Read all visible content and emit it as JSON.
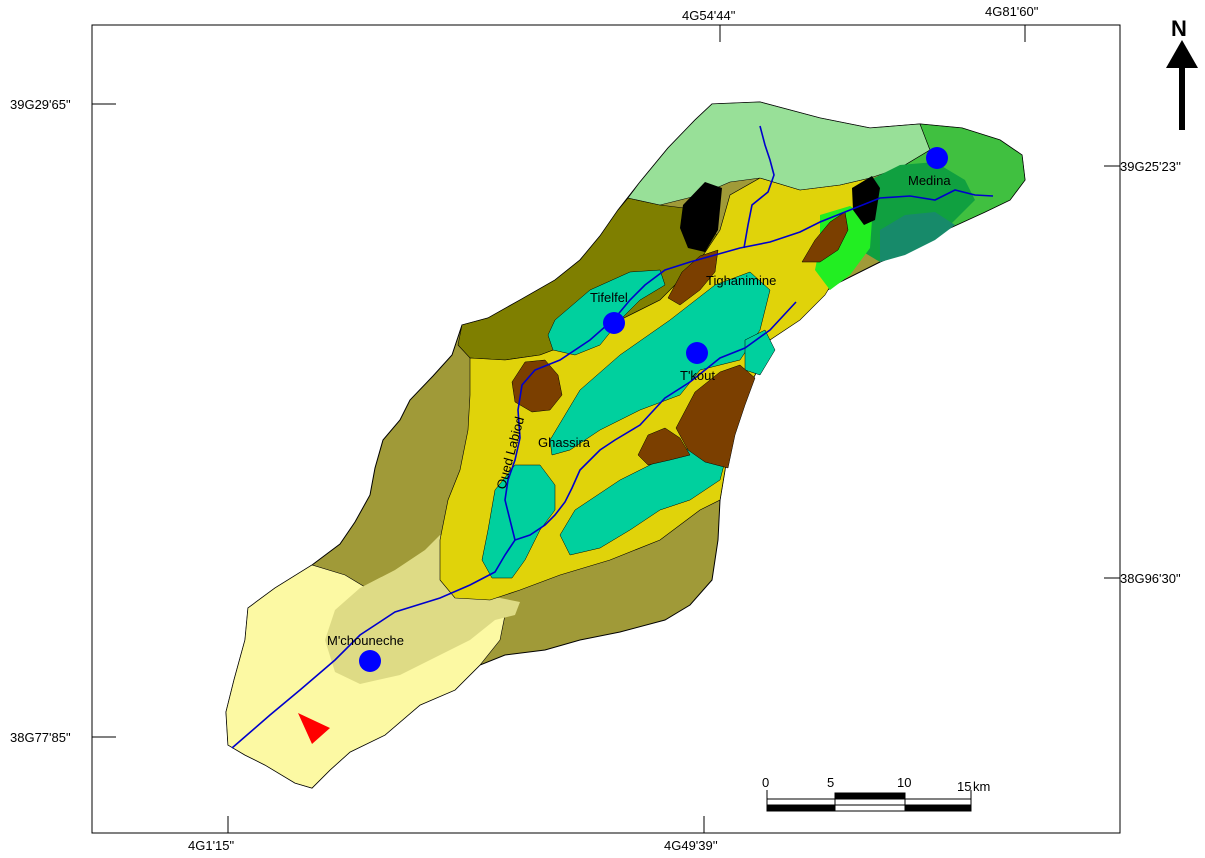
{
  "north_label": "N",
  "coords": {
    "top": [
      "4G54'44\"",
      "4G81'60\""
    ],
    "bottom": [
      "4G1'15\"",
      "4G49'39''"
    ],
    "left": [
      "39G29'65\"",
      "38G77'85\""
    ],
    "right": [
      "39G25'23''",
      "38G96'30\""
    ]
  },
  "places": {
    "medina": "Medina",
    "tighanimine": "Tighanimine",
    "tifelfel": "Tifelfel",
    "tkout": "T'kout",
    "ghassira": "Ghassira",
    "mchouneche": "M'chouneche",
    "river": "Oued Labiod"
  },
  "scale_bar": {
    "ticks": [
      "0",
      "5",
      "10",
      "15"
    ],
    "unit": "km"
  },
  "colors": {
    "town_marker": "#0000ff",
    "river": "#0000cc",
    "outlet_marker": "#ff0000"
  }
}
